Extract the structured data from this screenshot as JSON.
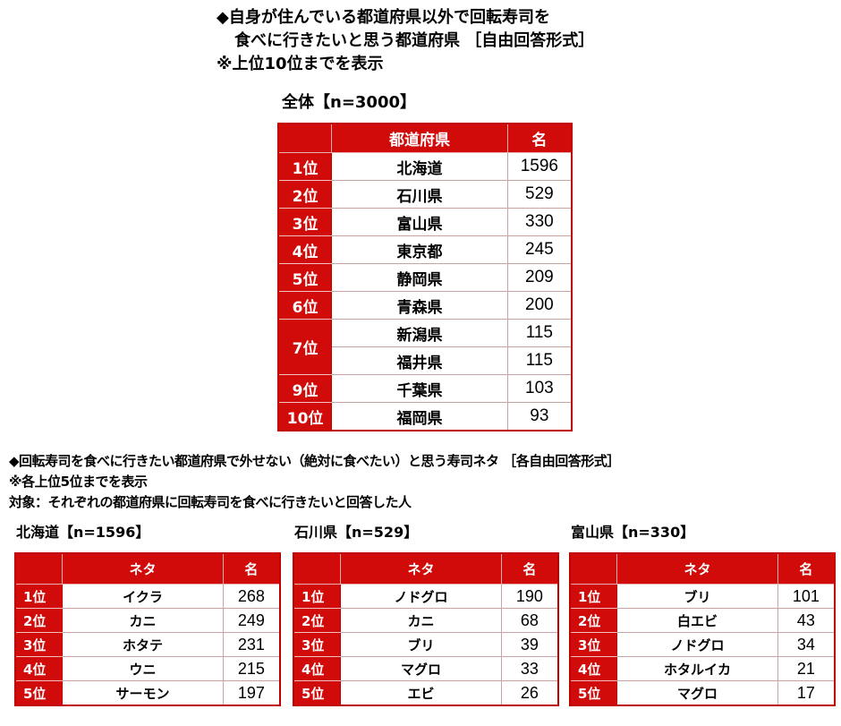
{
  "section1": {
    "title_line1": "◆自身が住んでいる都道府県以外で回転寿司を",
    "title_line2": "食べに行きたいと思う都道府県 ［自由回答形式］",
    "note": "※上位10位までを表示",
    "table_label": "全体【n=3000】",
    "headers": [
      "",
      "都道府県",
      "名"
    ],
    "rows": [
      {
        "rank": "1位",
        "name": "北海道",
        "count": "1596"
      },
      {
        "rank": "2位",
        "name": "石川県",
        "count": "529"
      },
      {
        "rank": "3位",
        "name": "富山県",
        "count": "330"
      },
      {
        "rank": "4位",
        "name": "東京都",
        "count": "245"
      },
      {
        "rank": "5位",
        "name": "静岡県",
        "count": "209"
      },
      {
        "rank": "6位",
        "name": "青森県",
        "count": "200"
      },
      {
        "rank": "7位",
        "name": "新潟県",
        "count": "115"
      },
      {
        "rank": "",
        "name": "福井県",
        "count": "115"
      },
      {
        "rank": "9位",
        "name": "千葉県",
        "count": "103"
      },
      {
        "rank": "10位",
        "name": "福岡県",
        "count": "93"
      }
    ]
  },
  "section2": {
    "title": "◆回転寿司を食べに行きたい都道府県で外せない（絶対に食べたい）と思う寿司ネタ ［各自由回答形式］",
    "note": "※各上位5位までを表示",
    "target": "対象：それぞれの都道府県に回転寿司を食べに行きたいと回答した人",
    "headers": [
      "",
      "ネタ",
      "名"
    ],
    "tables": [
      {
        "label": "北海道【n=1596】",
        "rows": [
          {
            "rank": "1位",
            "name": "イクラ",
            "count": "268"
          },
          {
            "rank": "2位",
            "name": "カニ",
            "count": "249"
          },
          {
            "rank": "3位",
            "name": "ホタテ",
            "count": "231"
          },
          {
            "rank": "4位",
            "name": "ウニ",
            "count": "215"
          },
          {
            "rank": "5位",
            "name": "サーモン",
            "count": "197"
          }
        ]
      },
      {
        "label": "石川県【n=529】",
        "rows": [
          {
            "rank": "1位",
            "name": "ノドグロ",
            "count": "190"
          },
          {
            "rank": "2位",
            "name": "カニ",
            "count": "68"
          },
          {
            "rank": "3位",
            "name": "ブリ",
            "count": "39"
          },
          {
            "rank": "4位",
            "name": "マグロ",
            "count": "33"
          },
          {
            "rank": "5位",
            "name": "エビ",
            "count": "26"
          }
        ]
      },
      {
        "label": "富山県【n=330】",
        "rows": [
          {
            "rank": "1位",
            "name": "ブリ",
            "count": "101"
          },
          {
            "rank": "2位",
            "name": "白エビ",
            "count": "43"
          },
          {
            "rank": "3位",
            "name": "ノドグロ",
            "count": "34"
          },
          {
            "rank": "4位",
            "name": "ホタルイカ",
            "count": "21"
          },
          {
            "rank": "5位",
            "name": "マグロ",
            "count": "17"
          }
        ]
      }
    ]
  },
  "colors": {
    "accent": "#d10a0a",
    "border": "#c00000"
  }
}
